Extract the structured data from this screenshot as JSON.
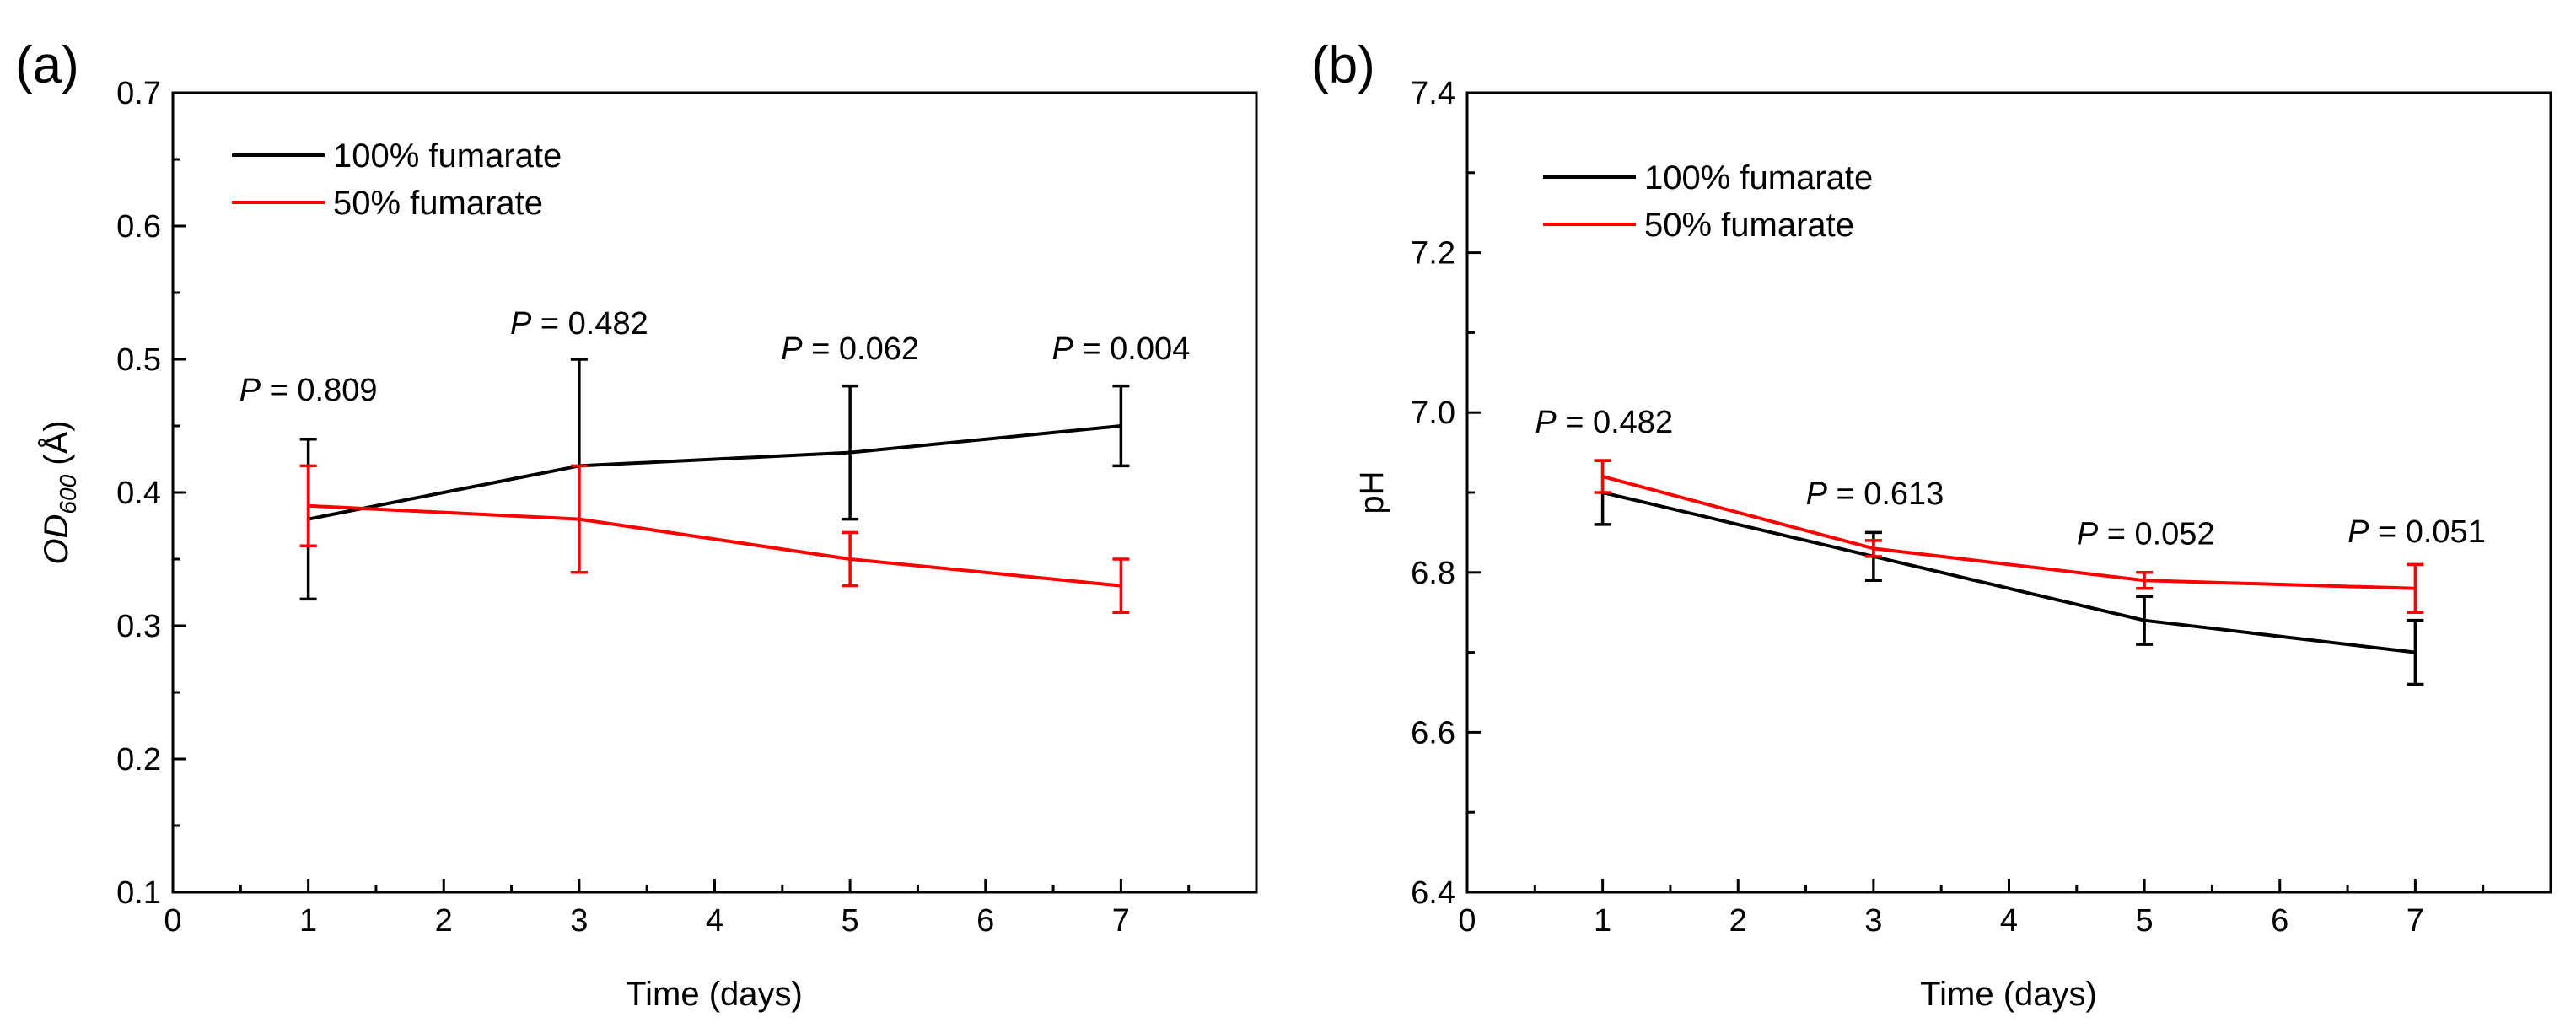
{
  "chart_data": [
    {
      "type": "line",
      "panel_label": "(a)",
      "xlabel": "Time (days)",
      "ylabel": {
        "main": "OD",
        "sub": "600",
        "unit": " (Å)"
      },
      "xlim": [
        0,
        8
      ],
      "ylim": [
        0.1,
        0.7
      ],
      "xticks": [
        0,
        1,
        2,
        3,
        4,
        5,
        6,
        7
      ],
      "yticks": [
        0.1,
        0.2,
        0.3,
        0.4,
        0.5,
        0.6,
        0.7
      ],
      "ytick_labels": [
        "0.1",
        "0.2",
        "0.3",
        "0.4",
        "0.5",
        "0.6",
        "0.7"
      ],
      "x": [
        1,
        3,
        5,
        7
      ],
      "series": [
        {
          "name": "100% fumarate",
          "color": "#000000",
          "values": [
            0.38,
            0.42,
            0.43,
            0.45
          ],
          "errors": [
            0.06,
            0.08,
            0.05,
            0.03
          ]
        },
        {
          "name": "50% fumarate",
          "color": "#ff0000",
          "values": [
            0.39,
            0.38,
            0.35,
            0.33
          ],
          "errors": [
            0.03,
            0.04,
            0.02,
            0.02
          ]
        }
      ],
      "legend_position": "top-left",
      "annotations": [
        {
          "italic": "P",
          "text": " = 0.809",
          "x": 1,
          "y": 0.469
        },
        {
          "italic": "P",
          "text": " = 0.482",
          "x": 3,
          "y": 0.519
        },
        {
          "italic": "P",
          "text": " = 0.062",
          "x": 5,
          "y": 0.5
        },
        {
          "italic": "P",
          "text": " = 0.004",
          "x": 7,
          "y": 0.5
        }
      ]
    },
    {
      "type": "line",
      "panel_label": "(b)",
      "xlabel": "Time (days)",
      "ylabel": {
        "main": "pH",
        "sub": "",
        "unit": ""
      },
      "xlim": [
        0,
        8
      ],
      "ylim": [
        6.4,
        7.4
      ],
      "xticks": [
        0,
        1,
        2,
        3,
        4,
        5,
        6,
        7
      ],
      "yticks": [
        6.4,
        6.6,
        6.8,
        7.0,
        7.2,
        7.4
      ],
      "ytick_labels": [
        "6.4",
        "6.6",
        "6.8",
        "7.0",
        "7.2",
        "7.4"
      ],
      "x": [
        1,
        3,
        5,
        7
      ],
      "series": [
        {
          "name": "100% fumarate",
          "color": "#000000",
          "values": [
            6.9,
            6.82,
            6.74,
            6.7
          ],
          "errors": [
            0.04,
            0.03,
            0.03,
            0.04
          ]
        },
        {
          "name": "50% fumarate",
          "color": "#ff0000",
          "values": [
            6.92,
            6.83,
            6.79,
            6.78
          ],
          "errors": [
            0.02,
            0.01,
            0.01,
            0.03
          ]
        }
      ],
      "legend_position": "top-left",
      "annotations": [
        {
          "italic": "P",
          "text": " = 0.482",
          "x": 0.5,
          "y": 6.975
        },
        {
          "italic": "P",
          "text": " = 0.613",
          "x": 2.5,
          "y": 6.885
        },
        {
          "italic": "P",
          "text": " = 0.052",
          "x": 4.5,
          "y": 6.835
        },
        {
          "italic": "P",
          "text": " = 0.051",
          "x": 6.5,
          "y": 6.838
        }
      ]
    }
  ]
}
